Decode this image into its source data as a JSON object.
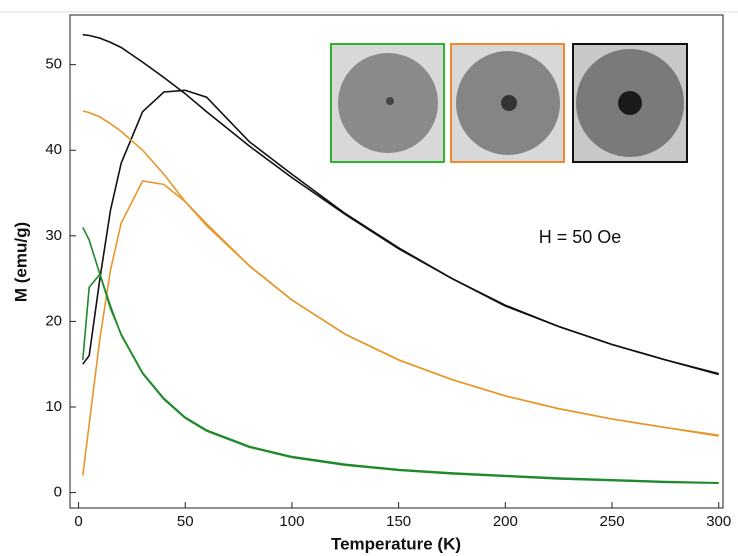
{
  "chart_data": {
    "type": "line",
    "x_label": "Temperature (K)",
    "y_label": "M (emu/g)",
    "annotation": "H = 50 Oe",
    "x": [
      2,
      5,
      10,
      15,
      20,
      30,
      40,
      50,
      60,
      80,
      100,
      125,
      150,
      175,
      200,
      225,
      250,
      275,
      300
    ],
    "series": [
      {
        "color": "#111111",
        "values": [
          53.5,
          53.4,
          53.1,
          52.6,
          52.0,
          50.3,
          48.5,
          46.6,
          44.5,
          40.5,
          36.8,
          32.5,
          28.5,
          25.0,
          21.8,
          19.4,
          17.3,
          15.5,
          13.9
        ]
      },
      {
        "color": "#111111",
        "values": [
          15.0,
          16.0,
          25.0,
          33.0,
          38.5,
          44.5,
          46.8,
          47.0,
          46.2,
          41.0,
          37.2,
          32.6,
          28.6,
          25.0,
          21.9,
          19.4,
          17.3,
          15.5,
          13.8
        ]
      },
      {
        "color": "#e8962a",
        "values": [
          44.6,
          44.4,
          43.9,
          43.1,
          42.2,
          40.0,
          37.2,
          34.0,
          31.2,
          26.5,
          22.5,
          18.5,
          15.5,
          13.2,
          11.3,
          9.8,
          8.6,
          7.6,
          6.7
        ]
      },
      {
        "color": "#e8962a",
        "values": [
          2.0,
          8.0,
          18.0,
          26.0,
          31.5,
          36.4,
          36.0,
          34.0,
          31.4,
          26.5,
          22.5,
          18.5,
          15.5,
          13.2,
          11.3,
          9.8,
          8.6,
          7.6,
          6.6
        ]
      },
      {
        "color": "#1e8a2a",
        "values": [
          31.0,
          29.5,
          25.5,
          21.5,
          18.5,
          14.0,
          11.0,
          8.8,
          7.3,
          5.4,
          4.2,
          3.3,
          2.7,
          2.3,
          2.0,
          1.7,
          1.5,
          1.3,
          1.15
        ]
      },
      {
        "color": "#1e8a2a",
        "values": [
          15.5,
          24.0,
          25.5,
          21.8,
          18.4,
          13.9,
          10.9,
          8.7,
          7.2,
          5.3,
          4.1,
          3.2,
          2.6,
          2.2,
          1.9,
          1.6,
          1.4,
          1.2,
          1.1
        ]
      }
    ],
    "xlim": [
      -4,
      302
    ],
    "ylim": [
      -1.8,
      55.8
    ],
    "xticks": [
      0,
      50,
      100,
      150,
      200,
      250,
      300
    ],
    "yticks": [
      0,
      10,
      20,
      30,
      40,
      50
    ]
  }
}
